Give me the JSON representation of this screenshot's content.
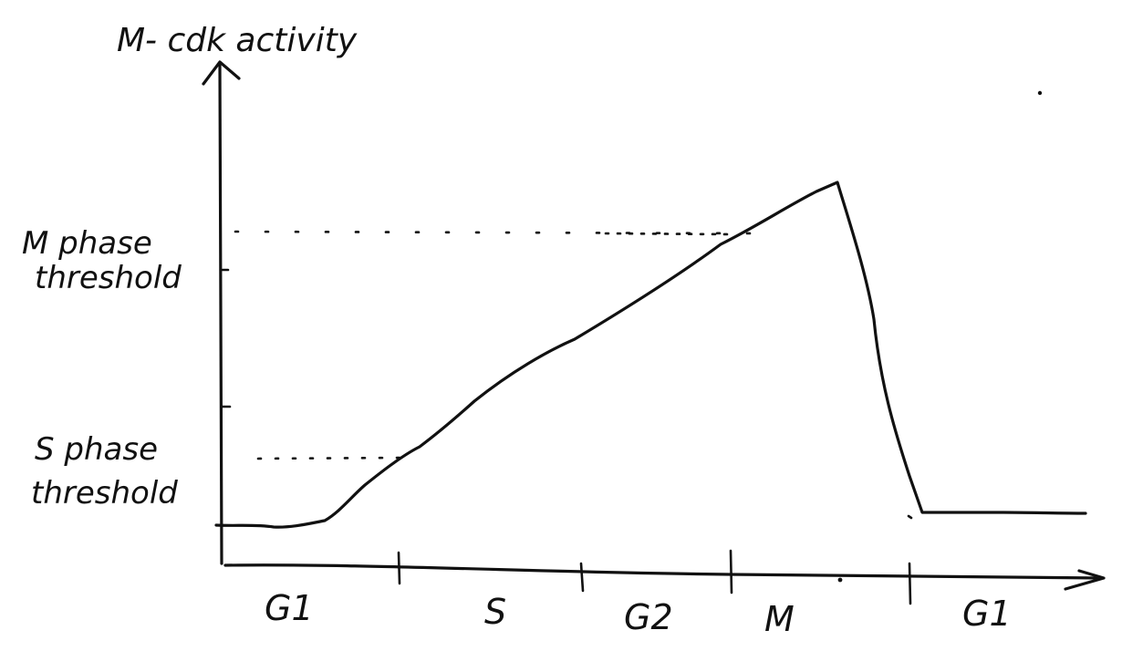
{
  "diagram": {
    "y_axis_label": "M- cdk activity",
    "thresholds": {
      "m_phase": {
        "line1": "M phase",
        "line2": "threshold"
      },
      "s_phase": {
        "line1": "S phase",
        "line2": "threshold"
      }
    },
    "phases": [
      "G1",
      "S",
      "G2",
      "M",
      "G1"
    ],
    "colors": {
      "ink": "#111111",
      "background": "#ffffff"
    }
  }
}
